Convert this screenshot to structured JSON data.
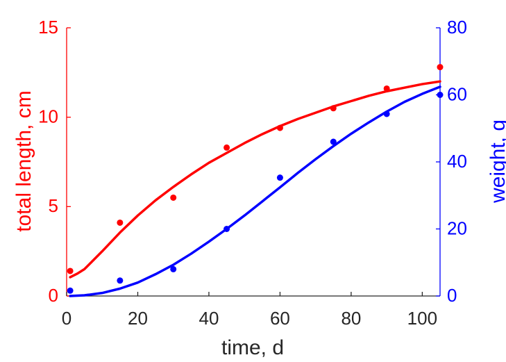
{
  "chart_data": {
    "type": "line",
    "title": "",
    "xlabel": "time, d",
    "ylabel_left": "total length, cm",
    "ylabel_right": "weight, g",
    "xlim": [
      0,
      105
    ],
    "ylim_left": [
      0,
      15
    ],
    "ylim_right": [
      0,
      80
    ],
    "xticks": [
      0,
      20,
      40,
      60,
      80,
      100
    ],
    "yticks_left": [
      0,
      5,
      10,
      15
    ],
    "yticks_right": [
      0,
      20,
      40,
      60,
      80
    ],
    "grid": false,
    "legend": "none",
    "colors": {
      "length": "#ff0000",
      "weight": "#0000ff",
      "axes": "#262626",
      "background": "#ffffff"
    },
    "series": [
      {
        "axis": "left",
        "color": "#ff0000",
        "points": {
          "x": [
            1,
            15,
            30,
            45,
            60,
            75,
            90,
            105
          ],
          "y": [
            1.4,
            4.1,
            5.5,
            8.3,
            9.4,
            10.5,
            11.6,
            12.8
          ]
        },
        "curve": {
          "x": [
            1,
            3,
            5,
            7,
            10,
            15,
            20,
            25,
            30,
            35,
            40,
            45,
            50,
            55,
            60,
            65,
            70,
            75,
            80,
            85,
            90,
            95,
            100,
            105
          ],
          "y": [
            1.05,
            1.25,
            1.5,
            1.9,
            2.5,
            3.55,
            4.5,
            5.35,
            6.1,
            6.8,
            7.45,
            8.0,
            8.55,
            9.05,
            9.5,
            9.9,
            10.25,
            10.6,
            10.9,
            11.2,
            11.45,
            11.65,
            11.85,
            12.0
          ]
        }
      },
      {
        "axis": "right",
        "color": "#0000ff",
        "points": {
          "x": [
            1,
            15,
            30,
            45,
            60,
            75,
            90,
            105
          ],
          "y": [
            1.6,
            4.6,
            8.0,
            20.0,
            35.3,
            46.0,
            54.3,
            60.0
          ]
        },
        "curve": {
          "x": [
            1,
            5,
            10,
            15,
            20,
            25,
            30,
            35,
            40,
            45,
            50,
            55,
            60,
            65,
            70,
            75,
            80,
            85,
            90,
            95,
            100,
            105
          ],
          "y": [
            0.0,
            0.2,
            0.9,
            2.2,
            4.0,
            6.5,
            9.3,
            12.6,
            16.2,
            20.0,
            24.0,
            28.2,
            32.4,
            36.7,
            40.8,
            44.7,
            48.4,
            51.8,
            55.0,
            57.9,
            60.3,
            62.4
          ]
        }
      }
    ]
  }
}
